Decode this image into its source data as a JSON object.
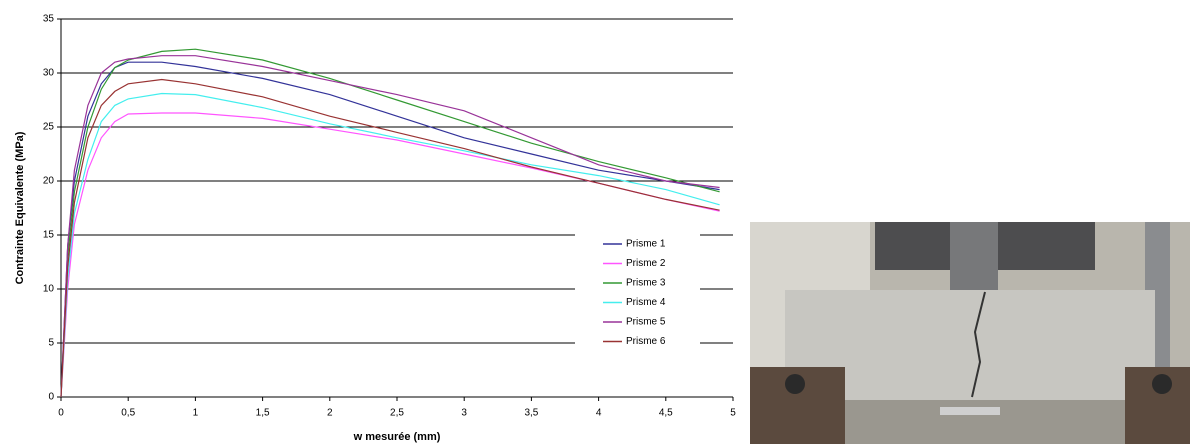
{
  "chart_data": {
    "type": "line",
    "ylabel": "Contrainte Equivalente (MPa)",
    "xlabel": "w mesurée (mm)",
    "x": [
      0,
      0.05,
      0.1,
      0.2,
      0.3,
      0.4,
      0.5,
      0.75,
      1,
      1.5,
      2,
      2.5,
      3,
      3.5,
      4,
      4.5,
      4.9
    ],
    "xlim": [
      0,
      5
    ],
    "xticks": [
      0,
      {
        "value": 0.5,
        "label": "0,5"
      },
      1,
      {
        "value": 1.5,
        "label": "1,5"
      },
      2,
      {
        "value": 2.5,
        "label": "2,5"
      },
      3,
      {
        "value": 3.5,
        "label": "3,5"
      },
      4,
      {
        "value": 4.5,
        "label": "4,5"
      },
      5
    ],
    "ylim": [
      0,
      35
    ],
    "yticks": [
      0,
      5,
      10,
      15,
      20,
      25,
      30,
      35
    ],
    "grid": true,
    "legend": "right",
    "series": [
      {
        "name": "Prisme 1",
        "color": "#333399",
        "values": [
          0,
          14,
          20,
          26,
          29,
          30.5,
          31,
          31,
          30.6,
          29.5,
          28,
          26,
          24,
          22.5,
          21,
          20,
          19.2
        ]
      },
      {
        "name": "Prisme 2",
        "color": "#ff55ff",
        "values": [
          0,
          10,
          16,
          21,
          24,
          25.5,
          26.2,
          26.3,
          26.3,
          25.8,
          24.8,
          23.8,
          22.5,
          21.2,
          19.8,
          18.3,
          17.2
        ]
      },
      {
        "name": "Prisme 3",
        "color": "#339933",
        "values": [
          0,
          13,
          19,
          25,
          28.5,
          30.5,
          31.2,
          32,
          32.2,
          31.2,
          29.5,
          27.5,
          25.5,
          23.5,
          21.8,
          20.3,
          19
        ]
      },
      {
        "name": "Prisme 4",
        "color": "#44eeee",
        "values": [
          0,
          11,
          17,
          22,
          25.5,
          27,
          27.6,
          28.1,
          28,
          26.8,
          25.3,
          24,
          22.8,
          21.5,
          20.5,
          19.2,
          17.8
        ]
      },
      {
        "name": "Prisme 5",
        "color": "#993399",
        "values": [
          0,
          14,
          21,
          27,
          30,
          31,
          31.3,
          31.6,
          31.6,
          30.6,
          29.3,
          28,
          26.5,
          24,
          21.5,
          20,
          19.4
        ]
      },
      {
        "name": "Prisme 6",
        "color": "#993333",
        "values": [
          0,
          12,
          18,
          24,
          27,
          28.3,
          29,
          29.4,
          29,
          27.8,
          26,
          24.5,
          23,
          21.3,
          19.8,
          18.3,
          17.3
        ]
      }
    ]
  }
}
